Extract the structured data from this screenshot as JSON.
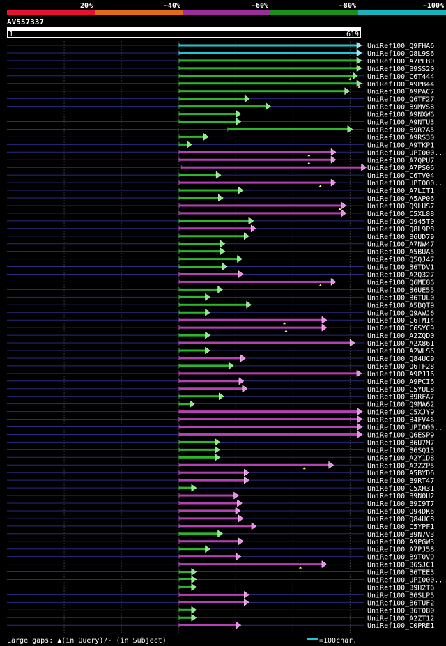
{
  "legend": {
    "scale_labels": [
      "20%",
      "~40%",
      "~60%",
      "~80%",
      "~100%"
    ],
    "scale_colors": [
      "#e8112d",
      "#e36b14",
      "#9e2d9a",
      "#1a8f1a",
      "#17b4bc"
    ]
  },
  "query": {
    "id": "AV557337",
    "start": "1",
    "end": "619",
    "length": 619
  },
  "colors": {
    "background": "#000000",
    "grid": "#3a3a3a",
    "query_line": "#2a2a80",
    "cyan": "#1fc7d3",
    "green": "#2db52d",
    "purple": "#b53fb5",
    "arrow_green": "#7ff27f",
    "arrow_purple": "#f088f0",
    "arrow_cyan": "#7ff3fa",
    "gap": "#ffff66",
    "text": "#ffffff"
  },
  "hits": [
    {
      "label": "UniRef100_Q9FHA6",
      "color": "cyan",
      "start": 301,
      "end": 619
    },
    {
      "label": "UniRef100_Q8L9S6",
      "color": "cyan",
      "start": 301,
      "end": 619
    },
    {
      "label": "UniRef100_A7PLB0",
      "color": "green",
      "start": 301,
      "end": 619
    },
    {
      "label": "UniRef100_B9SS20",
      "color": "green",
      "start": 301,
      "end": 619
    },
    {
      "label": "UniRef100_C6T444",
      "color": "green",
      "start": 301,
      "end": 612,
      "gap": 600
    },
    {
      "label": "UniRef100_A9PB44",
      "color": "green",
      "start": 301,
      "end": 619,
      "gap": 616
    },
    {
      "label": "UniRef100_A9PAC7",
      "color": "green",
      "start": 301,
      "end": 598
    },
    {
      "label": "UniRef100_Q6TF27",
      "color": "green",
      "start": 301,
      "end": 423
    },
    {
      "label": "UniRef100_B9MVS8",
      "color": "green",
      "start": 301,
      "end": 460
    },
    {
      "label": "UniRef100_A9NXW6",
      "color": "green",
      "start": 301,
      "end": 408
    },
    {
      "label": "UniRef100_A9NTU3",
      "color": "green",
      "start": 301,
      "end": 408
    },
    {
      "label": "UniRef100_B9R7A5",
      "color": "green",
      "start": 386,
      "end": 603
    },
    {
      "label": "UniRef100_A9RS30",
      "color": "green",
      "start": 301,
      "end": 351
    },
    {
      "label": "UniRef100_A9TKP1",
      "color": "green",
      "start": 301,
      "end": 322
    },
    {
      "label": "UniRef100_UPI000..",
      "color": "purple",
      "start": 301,
      "end": 574,
      "gap": 528
    },
    {
      "label": "UniRef100_A7QPU7",
      "color": "purple",
      "start": 301,
      "end": 574,
      "gap": 528
    },
    {
      "label": "UniRef100_A7PS06",
      "color": "purple",
      "start": 305,
      "end": 638
    },
    {
      "label": "UniRef100_C6TV04",
      "color": "green",
      "start": 301,
      "end": 373
    },
    {
      "label": "UniRef100_UPI000..",
      "color": "purple",
      "start": 301,
      "end": 574,
      "gap": 548
    },
    {
      "label": "UniRef100_A7LIT1",
      "color": "green",
      "start": 301,
      "end": 412
    },
    {
      "label": "UniRef100_A5AP06",
      "color": "green",
      "start": 301,
      "end": 377
    },
    {
      "label": "UniRef100_Q9LUS7",
      "color": "purple",
      "start": 301,
      "end": 592,
      "gap": 582
    },
    {
      "label": "UniRef100_C5XL88",
      "color": "purple",
      "start": 301,
      "end": 592
    },
    {
      "label": "UniRef100_Q945T0",
      "color": "green",
      "start": 301,
      "end": 430
    },
    {
      "label": "UniRef100_Q8L9P8",
      "color": "purple",
      "start": 301,
      "end": 434
    },
    {
      "label": "UniRef100_B6UD79",
      "color": "green",
      "start": 301,
      "end": 422
    },
    {
      "label": "UniRef100_A7NW47",
      "color": "green",
      "start": 301,
      "end": 380
    },
    {
      "label": "UniRef100_A5BUA5",
      "color": "green",
      "start": 301,
      "end": 380
    },
    {
      "label": "UniRef100_Q5QJ47",
      "color": "green",
      "start": 301,
      "end": 410
    },
    {
      "label": "UniRef100_B6TDV1",
      "color": "green",
      "start": 301,
      "end": 384
    },
    {
      "label": "UniRef100_A2Q327",
      "color": "purple",
      "start": 301,
      "end": 412
    },
    {
      "label": "UniRef100_Q6ME86",
      "color": "purple",
      "start": 301,
      "end": 574,
      "gap": 548
    },
    {
      "label": "UniRef100_B6UE55",
      "color": "green",
      "start": 301,
      "end": 376
    },
    {
      "label": "UniRef100_B6TUL0",
      "color": "green",
      "start": 301,
      "end": 354
    },
    {
      "label": "UniRef100_A5BQT9",
      "color": "green",
      "start": 301,
      "end": 426
    },
    {
      "label": "UniRef100_Q9AWJ6",
      "color": "green",
      "start": 301,
      "end": 354
    },
    {
      "label": "UniRef100_C6TM14",
      "color": "purple",
      "start": 301,
      "end": 558,
      "gap": 485
    },
    {
      "label": "UniRef100_C6SYC9",
      "color": "purple",
      "start": 301,
      "end": 558,
      "gap": 488
    },
    {
      "label": "UniRef100_A2ZQD0",
      "color": "green",
      "start": 301,
      "end": 354
    },
    {
      "label": "UniRef100_A2X861",
      "color": "purple",
      "start": 301,
      "end": 607
    },
    {
      "label": "UniRef100_A2WLS6",
      "color": "green",
      "start": 301,
      "end": 354
    },
    {
      "label": "UniRef100_Q84UC9",
      "color": "purple",
      "start": 301,
      "end": 416
    },
    {
      "label": "UniRef100_Q6TF28",
      "color": "green",
      "start": 301,
      "end": 395
    },
    {
      "label": "UniRef100_A9PJ16",
      "color": "purple",
      "start": 301,
      "end": 619
    },
    {
      "label": "UniRef100_A9PCI6",
      "color": "purple",
      "start": 301,
      "end": 413
    },
    {
      "label": "UniRef100_C5YUL8",
      "color": "purple",
      "start": 301,
      "end": 419
    },
    {
      "label": "UniRef100_B9RFA7",
      "color": "green",
      "start": 301,
      "end": 378
    },
    {
      "label": "UniRef100_Q9MA62",
      "color": "green",
      "start": 301,
      "end": 327
    },
    {
      "label": "UniRef100_C5XJY9",
      "color": "purple",
      "start": 301,
      "end": 620
    },
    {
      "label": "UniRef100_B4FV46",
      "color": "purple",
      "start": 301,
      "end": 620
    },
    {
      "label": "UniRef100_UPI000..",
      "color": "purple",
      "start": 301,
      "end": 620
    },
    {
      "label": "UniRef100_Q6ESP9",
      "color": "purple",
      "start": 301,
      "end": 620
    },
    {
      "label": "UniRef100_B6U7M7",
      "color": "green",
      "start": 301,
      "end": 371
    },
    {
      "label": "UniRef100_B6SQ13",
      "color": "green",
      "start": 301,
      "end": 371
    },
    {
      "label": "UniRef100_A2Y1D8",
      "color": "green",
      "start": 301,
      "end": 371
    },
    {
      "label": "UniRef100_A2ZZP5",
      "color": "purple",
      "start": 301,
      "end": 570,
      "gap": 520
    },
    {
      "label": "UniRef100_A5BYD6",
      "color": "purple",
      "start": 301,
      "end": 422
    },
    {
      "label": "UniRef100_B9RT47",
      "color": "purple",
      "start": 301,
      "end": 422
    },
    {
      "label": "UniRef100_C5XH31",
      "color": "green",
      "start": 301,
      "end": 330
    },
    {
      "label": "UniRef100_B9N0U2",
      "color": "purple",
      "start": 301,
      "end": 404
    },
    {
      "label": "UniRef100_B9I9T7",
      "color": "purple",
      "start": 301,
      "end": 410
    },
    {
      "label": "UniRef100_Q94DK6",
      "color": "purple",
      "start": 301,
      "end": 407
    },
    {
      "label": "UniRef100_Q84UC8",
      "color": "purple",
      "start": 301,
      "end": 412
    },
    {
      "label": "UniRef100_C5YPF1",
      "color": "purple",
      "start": 301,
      "end": 435
    },
    {
      "label": "UniRef100_B9N7V3",
      "color": "green",
      "start": 301,
      "end": 376
    },
    {
      "label": "UniRef100_A9PGW3",
      "color": "purple",
      "start": 301,
      "end": 412
    },
    {
      "label": "UniRef100_A7PJ58",
      "color": "green",
      "start": 301,
      "end": 354
    },
    {
      "label": "UniRef100_B9T0V9",
      "color": "purple",
      "start": 301,
      "end": 408
    },
    {
      "label": "UniRef100_B6SJC1",
      "color": "purple",
      "start": 301,
      "end": 558,
      "gap": 513
    },
    {
      "label": "UniRef100_B6TEE3",
      "color": "green",
      "start": 301,
      "end": 330
    },
    {
      "label": "UniRef100_UPI000..",
      "color": "green",
      "start": 301,
      "end": 330
    },
    {
      "label": "UniRef100_B9H2T6",
      "color": "green",
      "start": 301,
      "end": 330
    },
    {
      "label": "UniRef100_B6SLP5",
      "color": "purple",
      "start": 301,
      "end": 422
    },
    {
      "label": "UniRef100_B6TUF2",
      "color": "purple",
      "start": 301,
      "end": 422
    },
    {
      "label": "UniRef100_B6T080",
      "color": "green",
      "start": 301,
      "end": 330
    },
    {
      "label": "UniRef100_A2ZT12",
      "color": "green",
      "start": 301,
      "end": 330
    },
    {
      "label": "UniRef100_C0PRE1",
      "color": "purple",
      "start": 301,
      "end": 408
    }
  ],
  "footer": {
    "gaps_text": "Large gaps: ▲(in Query)/- (in Subject)",
    "scale_text": "=100char."
  }
}
